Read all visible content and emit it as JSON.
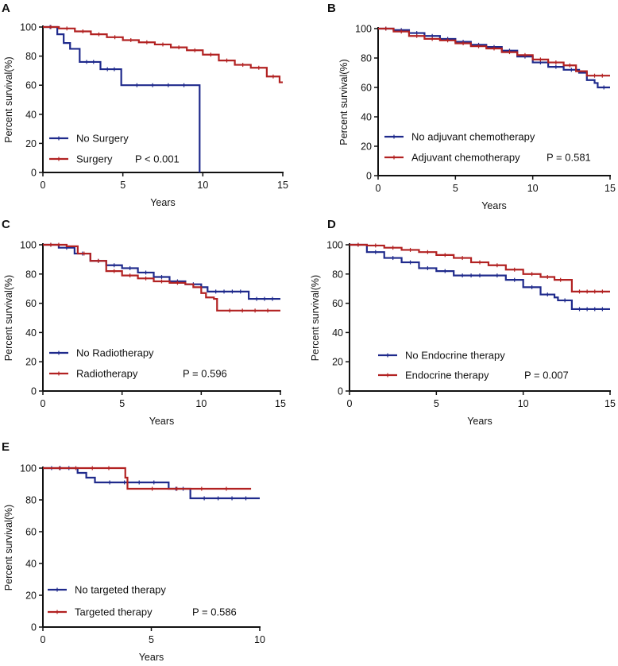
{
  "figure": {
    "background": "#ffffff",
    "axis_color": "#111111"
  },
  "chart_data": [
    {
      "type": "line",
      "panel": "A",
      "xlabel": "Years",
      "ylabel": "Percent survival(%)",
      "xlim": [
        0,
        15
      ],
      "ylim": [
        0,
        100
      ],
      "xticks": [
        0,
        5,
        10,
        15
      ],
      "yticks": [
        0,
        20,
        40,
        60,
        80,
        100
      ],
      "p_value": "P < 0.001",
      "legend_position": "bottom-left",
      "series": [
        {
          "name": "No Surgery",
          "color": "#1f2a8c",
          "steps": [
            [
              0,
              100
            ],
            [
              0.9,
              100
            ],
            [
              0.9,
              95
            ],
            [
              1.3,
              95
            ],
            [
              1.3,
              89
            ],
            [
              1.7,
              89
            ],
            [
              1.7,
              85
            ],
            [
              2.3,
              85
            ],
            [
              2.3,
              76
            ],
            [
              3.6,
              76
            ],
            [
              3.6,
              71
            ],
            [
              4.9,
              71
            ],
            [
              4.9,
              60
            ],
            [
              9.8,
              60
            ],
            [
              9.8,
              0
            ]
          ]
        },
        {
          "name": "Surgery",
          "color": "#b22222",
          "steps": [
            [
              0,
              100
            ],
            [
              1,
              99
            ],
            [
              2,
              97
            ],
            [
              3,
              95
            ],
            [
              4,
              93
            ],
            [
              5,
              91
            ],
            [
              6,
              89.5
            ],
            [
              7,
              88
            ],
            [
              8,
              86
            ],
            [
              9,
              84
            ],
            [
              10,
              81
            ],
            [
              11,
              77
            ],
            [
              12,
              74
            ],
            [
              13,
              72
            ],
            [
              14,
              66
            ],
            [
              14.8,
              64
            ],
            [
              14.8,
              62
            ],
            [
              15,
              62
            ]
          ]
        }
      ]
    },
    {
      "type": "line",
      "panel": "B",
      "xlabel": "Years",
      "ylabel": "Percent survival(%)",
      "xlim": [
        0,
        15
      ],
      "ylim": [
        0,
        100
      ],
      "xticks": [
        0,
        5,
        10,
        15
      ],
      "yticks": [
        0,
        20,
        40,
        60,
        80,
        100
      ],
      "p_value": "P = 0.581",
      "legend_position": "bottom-left",
      "series": [
        {
          "name": "No adjuvant chemotherapy",
          "color": "#1f2a8c",
          "steps": [
            [
              0,
              100
            ],
            [
              1,
              99
            ],
            [
              2,
              97
            ],
            [
              3,
              95
            ],
            [
              4,
              93
            ],
            [
              5,
              91
            ],
            [
              6,
              89
            ],
            [
              7,
              87.5
            ],
            [
              8,
              85
            ],
            [
              9,
              81
            ],
            [
              10,
              77
            ],
            [
              11,
              74
            ],
            [
              12,
              72
            ],
            [
              13,
              70
            ],
            [
              13.5,
              65
            ],
            [
              14,
              63
            ],
            [
              14.2,
              60
            ],
            [
              15,
              60
            ]
          ]
        },
        {
          "name": "Adjuvant chemotherapy",
          "color": "#b22222",
          "steps": [
            [
              0,
              100
            ],
            [
              1,
              98
            ],
            [
              2,
              95
            ],
            [
              3,
              93
            ],
            [
              4,
              92
            ],
            [
              5,
              90
            ],
            [
              6,
              88
            ],
            [
              7,
              86.5
            ],
            [
              8,
              84
            ],
            [
              9,
              82
            ],
            [
              10,
              79
            ],
            [
              11,
              77
            ],
            [
              12,
              75
            ],
            [
              12.8,
              71
            ],
            [
              13.5,
              68
            ],
            [
              15,
              68
            ]
          ]
        }
      ]
    },
    {
      "type": "line",
      "panel": "C",
      "xlabel": "Years",
      "ylabel": "Percent survival(%)",
      "xlim": [
        0,
        15
      ],
      "ylim": [
        0,
        100
      ],
      "xticks": [
        0,
        5,
        10,
        15
      ],
      "yticks": [
        0,
        20,
        40,
        60,
        80,
        100
      ],
      "p_value": "P = 0.596",
      "legend_position": "bottom-left",
      "series": [
        {
          "name": "No Radiotherapy",
          "color": "#1f2a8c",
          "steps": [
            [
              0,
              100
            ],
            [
              1,
              98
            ],
            [
              2,
              94
            ],
            [
              3,
              89
            ],
            [
              4,
              86
            ],
            [
              5,
              84
            ],
            [
              6,
              81
            ],
            [
              7,
              78
            ],
            [
              8,
              75
            ],
            [
              9,
              73
            ],
            [
              10,
              71
            ],
            [
              10.4,
              68
            ],
            [
              13,
              68
            ],
            [
              13,
              63
            ],
            [
              15,
              63
            ]
          ]
        },
        {
          "name": "Radiotherapy",
          "color": "#b22222",
          "steps": [
            [
              0,
              100
            ],
            [
              1.5,
              99
            ],
            [
              2.2,
              94
            ],
            [
              3,
              89
            ],
            [
              4,
              82
            ],
            [
              5,
              79
            ],
            [
              6,
              77
            ],
            [
              7,
              75
            ],
            [
              8,
              74
            ],
            [
              9,
              73
            ],
            [
              9.5,
              71
            ],
            [
              10,
              67
            ],
            [
              10.3,
              64
            ],
            [
              10.8,
              63
            ],
            [
              11,
              55
            ],
            [
              15,
              55
            ]
          ]
        }
      ]
    },
    {
      "type": "line",
      "panel": "D",
      "xlabel": "Years",
      "ylabel": "Percent survival(%)",
      "xlim": [
        0,
        15
      ],
      "ylim": [
        0,
        100
      ],
      "xticks": [
        0,
        5,
        10,
        15
      ],
      "yticks": [
        0,
        20,
        40,
        60,
        80,
        100
      ],
      "p_value": "P = 0.007",
      "legend_position": "bottom-left",
      "series": [
        {
          "name": "No Endocrine therapy",
          "color": "#1f2a8c",
          "steps": [
            [
              0,
              100
            ],
            [
              1,
              95
            ],
            [
              2,
              91
            ],
            [
              3,
              88
            ],
            [
              4,
              84
            ],
            [
              5,
              82
            ],
            [
              6,
              79
            ],
            [
              8,
              79
            ],
            [
              9,
              76
            ],
            [
              10,
              71
            ],
            [
              11,
              66
            ],
            [
              11.8,
              64
            ],
            [
              12,
              62
            ],
            [
              12.8,
              56
            ],
            [
              15,
              56
            ]
          ]
        },
        {
          "name": "Endocrine therapy",
          "color": "#b22222",
          "steps": [
            [
              0,
              100
            ],
            [
              1,
              99.5
            ],
            [
              2,
              98
            ],
            [
              3,
              96.5
            ],
            [
              4,
              95
            ],
            [
              5,
              93
            ],
            [
              6,
              91
            ],
            [
              7,
              88
            ],
            [
              8,
              86
            ],
            [
              9,
              83
            ],
            [
              10,
              80
            ],
            [
              11,
              78
            ],
            [
              11.8,
              76
            ],
            [
              12.5,
              76
            ],
            [
              12.8,
              68
            ],
            [
              15,
              68
            ]
          ]
        }
      ]
    },
    {
      "type": "line",
      "panel": "E",
      "xlabel": "Years",
      "ylabel": "Percent survival(%)",
      "xlim": [
        0,
        10
      ],
      "ylim": [
        0,
        100
      ],
      "xticks": [
        0,
        5,
        10
      ],
      "yticks": [
        0,
        20,
        40,
        60,
        80,
        100
      ],
      "p_value": "P = 0.586",
      "legend_position": "bottom-left",
      "series": [
        {
          "name": "No targeted therapy",
          "color": "#1f2a8c",
          "steps": [
            [
              0,
              100
            ],
            [
              1.6,
              100
            ],
            [
              1.6,
              97
            ],
            [
              2,
              94
            ],
            [
              2.4,
              91
            ],
            [
              5.8,
              91
            ],
            [
              5.8,
              87
            ],
            [
              6.8,
              87
            ],
            [
              6.8,
              81
            ],
            [
              10,
              81
            ]
          ]
        },
        {
          "name": "Targeted therapy",
          "color": "#b22222",
          "steps": [
            [
              0,
              100
            ],
            [
              3.8,
              100
            ],
            [
              3.8,
              94
            ],
            [
              3.9,
              94
            ],
            [
              3.9,
              87
            ],
            [
              9.6,
              87
            ]
          ]
        }
      ]
    }
  ]
}
